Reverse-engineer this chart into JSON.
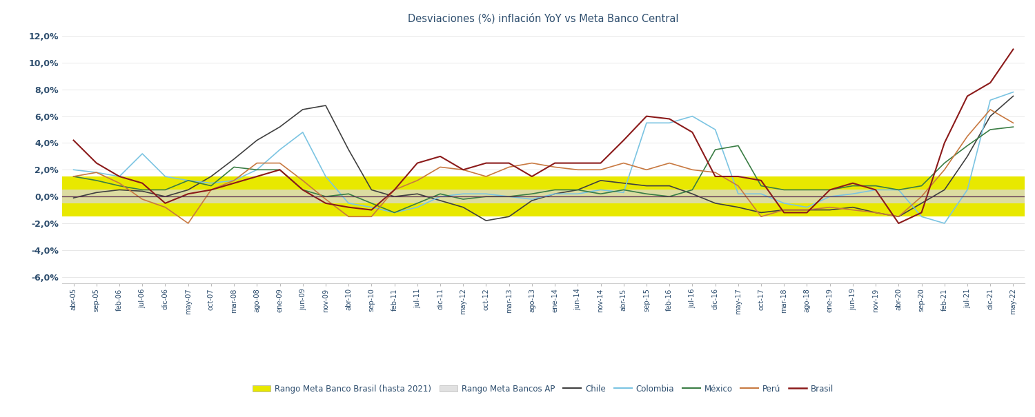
{
  "title": "Desviaciones (%) inflación YoY vs Meta Banco Central",
  "title_color": "#2e4e6e",
  "background_color": "#ffffff",
  "ylabel_band_brazil": "Rango Meta Banco Brasil (hasta 2021)",
  "ylabel_band_ap": "Rango Meta Bancos AP",
  "band_brazil_color": "#e8e800",
  "band_ap_color": "#d8d8d8",
  "band_brazil_lower": -1.5,
  "band_brazil_upper": 1.5,
  "band_ap_lower": -0.5,
  "band_ap_upper": 0.5,
  "zero_line_color": "#5a2d51",
  "ylim": [
    -6.5,
    12.5
  ],
  "yticks": [
    -6.0,
    -4.0,
    -2.0,
    0.0,
    2.0,
    4.0,
    6.0,
    8.0,
    10.0,
    12.0
  ],
  "x_labels": [
    "abr-05",
    "sep-05",
    "feb-06",
    "jul-06",
    "dic-06",
    "may-07",
    "oct-07",
    "mar-08",
    "ago-08",
    "ene-09",
    "jun-09",
    "nov-09",
    "abr-10",
    "sep-10",
    "feb-11",
    "jul-11",
    "dic-11",
    "may-12",
    "oct-12",
    "mar-13",
    "ago-13",
    "ene-14",
    "jun-14",
    "nov-14",
    "abr-15",
    "sep-15",
    "feb-16",
    "jul-16",
    "dic-16",
    "may-17",
    "oct-17",
    "mar-18",
    "ago-18",
    "ene-19",
    "jun-19",
    "nov-19",
    "abr-20",
    "sep-20",
    "feb-21",
    "jul-21",
    "dic-21",
    "may-22"
  ],
  "Chile": {
    "color": "#404040",
    "linewidth": 1.2,
    "values": [
      -0.1,
      0.3,
      0.5,
      0.4,
      0.0,
      0.5,
      1.5,
      2.8,
      4.2,
      5.2,
      6.5,
      6.8,
      3.5,
      0.5,
      0.0,
      0.2,
      -0.3,
      -0.8,
      -1.8,
      -1.5,
      -0.3,
      0.2,
      0.5,
      1.2,
      1.0,
      0.8,
      0.8,
      0.2,
      -0.5,
      -0.8,
      -1.2,
      -1.0,
      -1.0,
      -1.0,
      -0.8,
      -1.2,
      -1.5,
      -0.5,
      0.5,
      3.0,
      6.0,
      7.5
    ]
  },
  "Colombia": {
    "color": "#7bc4e2",
    "linewidth": 1.2,
    "values": [
      2.0,
      1.8,
      1.5,
      3.2,
      1.5,
      1.2,
      1.0,
      1.2,
      2.0,
      3.5,
      4.8,
      1.5,
      -0.5,
      -0.8,
      -1.2,
      -0.8,
      0.0,
      0.2,
      0.2,
      0.0,
      -0.2,
      0.2,
      0.2,
      0.5,
      0.3,
      5.5,
      5.5,
      6.0,
      5.0,
      0.2,
      0.2,
      -0.5,
      -0.8,
      0.0,
      0.2,
      0.5,
      0.5,
      -1.5,
      -2.0,
      0.5,
      7.2,
      7.8
    ]
  },
  "Mexico": {
    "color": "#3a7d44",
    "linewidth": 1.2,
    "values": [
      1.5,
      1.2,
      0.8,
      0.5,
      0.5,
      1.2,
      0.8,
      2.2,
      2.0,
      2.0,
      0.5,
      0.0,
      0.2,
      -0.5,
      -1.2,
      -0.5,
      0.2,
      -0.2,
      0.0,
      0.0,
      0.2,
      0.5,
      0.5,
      0.2,
      0.5,
      0.2,
      0.0,
      0.5,
      3.5,
      3.8,
      0.8,
      0.5,
      0.5,
      0.5,
      0.8,
      0.8,
      0.5,
      0.8,
      2.5,
      3.8,
      5.0,
      5.2
    ]
  },
  "Peru": {
    "color": "#c87941",
    "linewidth": 1.2,
    "values": [
      1.5,
      1.8,
      1.0,
      -0.2,
      -0.8,
      -2.0,
      0.5,
      1.2,
      2.5,
      2.5,
      1.2,
      -0.2,
      -1.5,
      -1.5,
      0.5,
      1.2,
      2.2,
      2.0,
      1.5,
      2.2,
      2.5,
      2.2,
      2.0,
      2.0,
      2.5,
      2.0,
      2.5,
      2.0,
      1.8,
      0.8,
      -1.5,
      -1.0,
      -1.0,
      -0.8,
      -1.0,
      -1.2,
      -1.5,
      0.0,
      2.0,
      4.5,
      6.5,
      5.5
    ]
  },
  "Brasil": {
    "color": "#8b1a1a",
    "linewidth": 1.5,
    "values": [
      4.2,
      2.5,
      1.5,
      1.0,
      -0.5,
      0.2,
      0.5,
      1.0,
      1.5,
      2.0,
      0.5,
      -0.5,
      -0.8,
      -1.0,
      0.5,
      2.5,
      3.0,
      2.0,
      2.5,
      2.5,
      1.5,
      2.5,
      2.5,
      2.5,
      4.2,
      6.0,
      5.8,
      4.8,
      1.5,
      1.5,
      1.2,
      -1.2,
      -1.2,
      0.5,
      1.0,
      0.5,
      -2.0,
      -1.2,
      4.0,
      7.5,
      8.5,
      11.0
    ]
  }
}
